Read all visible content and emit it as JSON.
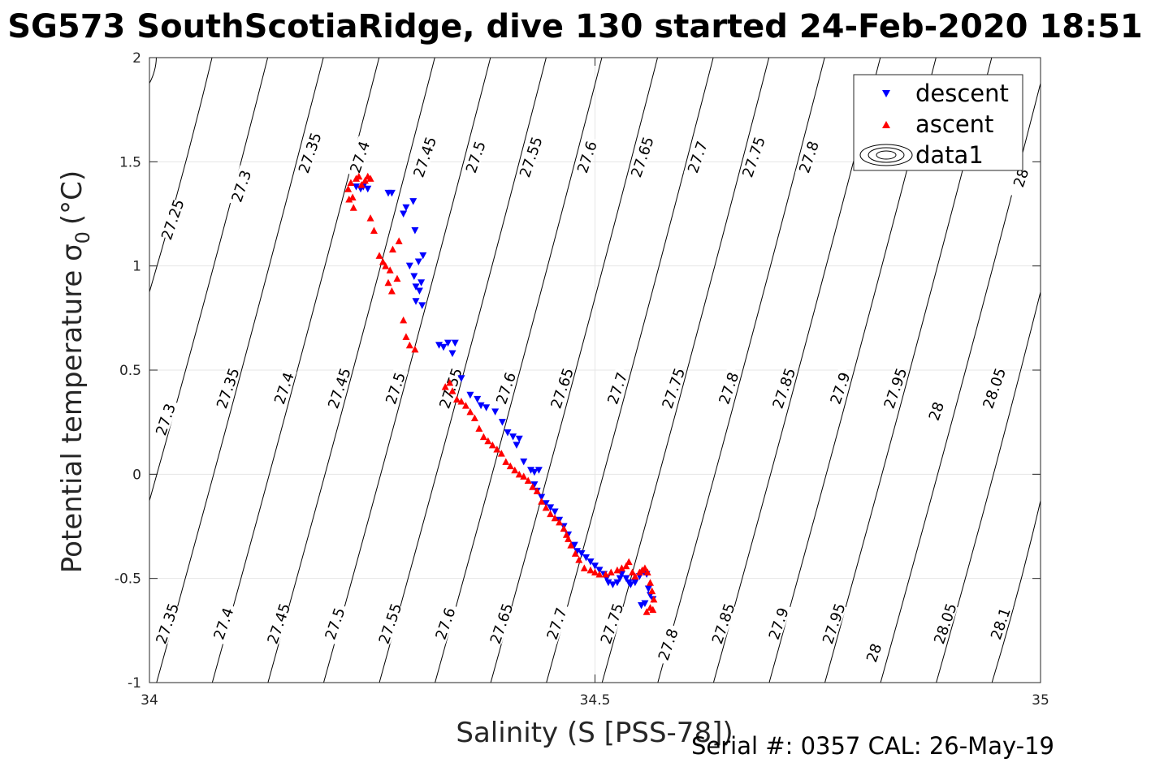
{
  "title": "SG573 SouthScotiaRidge, dive 130 started 24-Feb-2020 18:51",
  "serial_note": "Serial #: 0357  CAL: 26-May-19",
  "colors": {
    "descent": "#0000ff",
    "ascent": "#ff0000",
    "contour": "#000000",
    "grid": "#e6e6e6"
  },
  "chart_data": {
    "type": "scatter",
    "xlabel": "Salinity (S [PSS-78])",
    "ylabel_main": "Potential temperature σ",
    "ylabel_sub": "0",
    "ylabel_unit": "(°C)",
    "xlim": [
      34,
      35
    ],
    "ylim": [
      -1,
      2
    ],
    "xticks": [
      "34",
      "34.5",
      "35"
    ],
    "yticks": [
      "-1",
      "-0.5",
      "0",
      "0.5",
      "1",
      "1.5",
      "2"
    ],
    "grid": true,
    "legend_position": "top-right",
    "legend": [
      {
        "label": "descent",
        "marker": "triangle-down",
        "color": "#0000ff"
      },
      {
        "label": "ascent",
        "marker": "triangle-up",
        "color": "#ff0000"
      },
      {
        "label": "data1",
        "marker": "contour-ellipse",
        "color": "#000000"
      }
    ],
    "contour_labels": [
      {
        "text": "27.25",
        "x": 34.028,
        "y": 1.22
      },
      {
        "text": "27.3",
        "x": 34.105,
        "y": 1.38
      },
      {
        "text": "27.35",
        "x": 34.182,
        "y": 1.54
      },
      {
        "text": "27.4",
        "x": 34.238,
        "y": 1.52
      },
      {
        "text": "27.45",
        "x": 34.311,
        "y": 1.52
      },
      {
        "text": "27.5",
        "x": 34.368,
        "y": 1.52
      },
      {
        "text": "27.55",
        "x": 34.43,
        "y": 1.52
      },
      {
        "text": "27.6",
        "x": 34.493,
        "y": 1.52
      },
      {
        "text": "27.65",
        "x": 34.555,
        "y": 1.52
      },
      {
        "text": "27.7",
        "x": 34.617,
        "y": 1.52
      },
      {
        "text": "27.75",
        "x": 34.68,
        "y": 1.52
      },
      {
        "text": "27.8",
        "x": 34.742,
        "y": 1.52
      },
      {
        "text": "28",
        "x": 34.98,
        "y": 1.42
      },
      {
        "text": "27.3",
        "x": 34.02,
        "y": 0.26
      },
      {
        "text": "27.35",
        "x": 34.09,
        "y": 0.41
      },
      {
        "text": "27.4",
        "x": 34.153,
        "y": 0.41
      },
      {
        "text": "27.45",
        "x": 34.215,
        "y": 0.41
      },
      {
        "text": "27.5",
        "x": 34.278,
        "y": 0.41
      },
      {
        "text": "27.55",
        "x": 34.34,
        "y": 0.41
      },
      {
        "text": "27.6",
        "x": 34.402,
        "y": 0.41
      },
      {
        "text": "27.65",
        "x": 34.465,
        "y": 0.41
      },
      {
        "text": "27.7",
        "x": 34.527,
        "y": 0.41
      },
      {
        "text": "27.75",
        "x": 34.59,
        "y": 0.41
      },
      {
        "text": "27.8",
        "x": 34.652,
        "y": 0.41
      },
      {
        "text": "27.85",
        "x": 34.714,
        "y": 0.41
      },
      {
        "text": "27.9",
        "x": 34.777,
        "y": 0.41
      },
      {
        "text": "27.95",
        "x": 34.839,
        "y": 0.41
      },
      {
        "text": "28",
        "x": 34.885,
        "y": 0.3
      },
      {
        "text": "28.05",
        "x": 34.95,
        "y": 0.41
      },
      {
        "text": "27.35",
        "x": 34.022,
        "y": -0.72
      },
      {
        "text": "27.4",
        "x": 34.085,
        "y": -0.72
      },
      {
        "text": "27.45",
        "x": 34.147,
        "y": -0.72
      },
      {
        "text": "27.5",
        "x": 34.21,
        "y": -0.72
      },
      {
        "text": "27.55",
        "x": 34.272,
        "y": -0.72
      },
      {
        "text": "27.6",
        "x": 34.334,
        "y": -0.72
      },
      {
        "text": "27.65",
        "x": 34.397,
        "y": -0.72
      },
      {
        "text": "27.7",
        "x": 34.459,
        "y": -0.72
      },
      {
        "text": "27.75",
        "x": 34.521,
        "y": -0.72
      },
      {
        "text": "27.8",
        "x": 34.584,
        "y": -0.82
      },
      {
        "text": "27.85",
        "x": 34.646,
        "y": -0.72
      },
      {
        "text": "27.9",
        "x": 34.708,
        "y": -0.72
      },
      {
        "text": "27.95",
        "x": 34.77,
        "y": -0.72
      },
      {
        "text": "28",
        "x": 34.815,
        "y": -0.86
      },
      {
        "text": "28.05",
        "x": 34.895,
        "y": -0.72
      },
      {
        "text": "28.1",
        "x": 34.957,
        "y": -0.72
      }
    ],
    "series": [
      {
        "name": "descent",
        "marker": "triangle-down",
        "points": [
          [
            34.232,
            1.38
          ],
          [
            34.237,
            1.37
          ],
          [
            34.24,
            1.38
          ],
          [
            34.245,
            1.37
          ],
          [
            34.268,
            1.35
          ],
          [
            34.272,
            1.35
          ],
          [
            34.285,
            1.25
          ],
          [
            34.288,
            1.28
          ],
          [
            34.296,
            1.31
          ],
          [
            34.298,
            1.17
          ],
          [
            34.292,
            1.0
          ],
          [
            34.297,
            0.95
          ],
          [
            34.302,
            1.02
          ],
          [
            34.299,
            0.9
          ],
          [
            34.303,
            0.88
          ],
          [
            34.299,
            0.83
          ],
          [
            34.306,
            0.81
          ],
          [
            34.305,
            0.92
          ],
          [
            34.307,
            1.05
          ],
          [
            34.325,
            0.62
          ],
          [
            34.33,
            0.61
          ],
          [
            34.335,
            0.63
          ],
          [
            34.34,
            0.58
          ],
          [
            34.343,
            0.63
          ],
          [
            34.35,
            0.46
          ],
          [
            34.36,
            0.38
          ],
          [
            34.368,
            0.36
          ],
          [
            34.372,
            0.33
          ],
          [
            34.378,
            0.32
          ],
          [
            34.388,
            0.3
          ],
          [
            34.396,
            0.25
          ],
          [
            34.402,
            0.2
          ],
          [
            34.408,
            0.18
          ],
          [
            34.412,
            0.14
          ],
          [
            34.415,
            0.17
          ],
          [
            34.42,
            0.06
          ],
          [
            34.428,
            0.02
          ],
          [
            34.432,
            0.01
          ],
          [
            34.437,
            0.02
          ],
          [
            34.432,
            -0.05
          ],
          [
            34.435,
            -0.08
          ],
          [
            34.44,
            -0.11
          ],
          [
            34.445,
            -0.14
          ],
          [
            34.45,
            -0.16
          ],
          [
            34.455,
            -0.18
          ],
          [
            34.46,
            -0.22
          ],
          [
            34.465,
            -0.25
          ],
          [
            34.47,
            -0.29
          ],
          [
            34.477,
            -0.34
          ],
          [
            34.48,
            -0.37
          ],
          [
            34.485,
            -0.38
          ],
          [
            34.49,
            -0.4
          ],
          [
            34.495,
            -0.42
          ],
          [
            34.5,
            -0.44
          ],
          [
            34.505,
            -0.46
          ],
          [
            34.51,
            -0.48
          ],
          [
            34.513,
            -0.5
          ],
          [
            34.515,
            -0.52
          ],
          [
            34.52,
            -0.53
          ],
          [
            34.525,
            -0.52
          ],
          [
            34.528,
            -0.5
          ],
          [
            34.53,
            -0.48
          ],
          [
            34.535,
            -0.5
          ],
          [
            34.538,
            -0.52
          ],
          [
            34.54,
            -0.53
          ],
          [
            34.545,
            -0.52
          ],
          [
            34.55,
            -0.49
          ],
          [
            34.555,
            -0.47
          ],
          [
            34.558,
            -0.48
          ],
          [
            34.56,
            -0.55
          ],
          [
            34.562,
            -0.58
          ],
          [
            34.565,
            -0.6
          ],
          [
            34.552,
            -0.63
          ],
          [
            34.556,
            -0.62
          ]
        ]
      },
      {
        "name": "ascent",
        "marker": "triangle-up",
        "points": [
          [
            34.223,
            1.37
          ],
          [
            34.226,
            1.4
          ],
          [
            34.228,
            1.33
          ],
          [
            34.232,
            1.42
          ],
          [
            34.235,
            1.43
          ],
          [
            34.238,
            1.39
          ],
          [
            34.242,
            1.41
          ],
          [
            34.245,
            1.43
          ],
          [
            34.248,
            1.42
          ],
          [
            34.224,
            1.32
          ],
          [
            34.229,
            1.28
          ],
          [
            34.248,
            1.23
          ],
          [
            34.252,
            1.17
          ],
          [
            34.258,
            1.05
          ],
          [
            34.262,
            1.02
          ],
          [
            34.265,
            1.0
          ],
          [
            34.27,
            0.98
          ],
          [
            34.273,
            1.08
          ],
          [
            34.28,
            1.12
          ],
          [
            34.268,
            0.92
          ],
          [
            34.272,
            0.88
          ],
          [
            34.278,
            0.94
          ],
          [
            34.285,
            0.74
          ],
          [
            34.288,
            0.66
          ],
          [
            34.292,
            0.62
          ],
          [
            34.298,
            0.6
          ],
          [
            34.332,
            0.42
          ],
          [
            34.337,
            0.44
          ],
          [
            34.34,
            0.4
          ],
          [
            34.345,
            0.36
          ],
          [
            34.35,
            0.35
          ],
          [
            34.355,
            0.33
          ],
          [
            34.36,
            0.3
          ],
          [
            34.365,
            0.27
          ],
          [
            34.37,
            0.22
          ],
          [
            34.375,
            0.18
          ],
          [
            34.38,
            0.16
          ],
          [
            34.385,
            0.14
          ],
          [
            34.39,
            0.12
          ],
          [
            34.395,
            0.1
          ],
          [
            34.4,
            0.06
          ],
          [
            34.405,
            0.04
          ],
          [
            34.41,
            0.02
          ],
          [
            34.415,
            0.0
          ],
          [
            34.42,
            -0.01
          ],
          [
            34.425,
            -0.03
          ],
          [
            34.43,
            -0.06
          ],
          [
            34.435,
            -0.08
          ],
          [
            34.44,
            -0.13
          ],
          [
            34.445,
            -0.16
          ],
          [
            34.45,
            -0.19
          ],
          [
            34.455,
            -0.21
          ],
          [
            34.46,
            -0.23
          ],
          [
            34.465,
            -0.26
          ],
          [
            34.468,
            -0.29
          ],
          [
            34.47,
            -0.31
          ],
          [
            34.473,
            -0.34
          ],
          [
            34.478,
            -0.38
          ],
          [
            34.482,
            -0.41
          ],
          [
            34.488,
            -0.45
          ],
          [
            34.495,
            -0.46
          ],
          [
            34.5,
            -0.47
          ],
          [
            34.505,
            -0.48
          ],
          [
            34.512,
            -0.48
          ],
          [
            34.518,
            -0.47
          ],
          [
            34.525,
            -0.46
          ],
          [
            34.53,
            -0.45
          ],
          [
            34.535,
            -0.44
          ],
          [
            34.538,
            -0.42
          ],
          [
            34.542,
            -0.47
          ],
          [
            34.545,
            -0.49
          ],
          [
            34.55,
            -0.47
          ],
          [
            34.553,
            -0.46
          ],
          [
            34.556,
            -0.45
          ],
          [
            34.559,
            -0.47
          ],
          [
            34.562,
            -0.52
          ],
          [
            34.564,
            -0.56
          ],
          [
            34.566,
            -0.6
          ],
          [
            34.562,
            -0.64
          ],
          [
            34.558,
            -0.66
          ],
          [
            34.565,
            -0.65
          ]
        ]
      }
    ]
  }
}
